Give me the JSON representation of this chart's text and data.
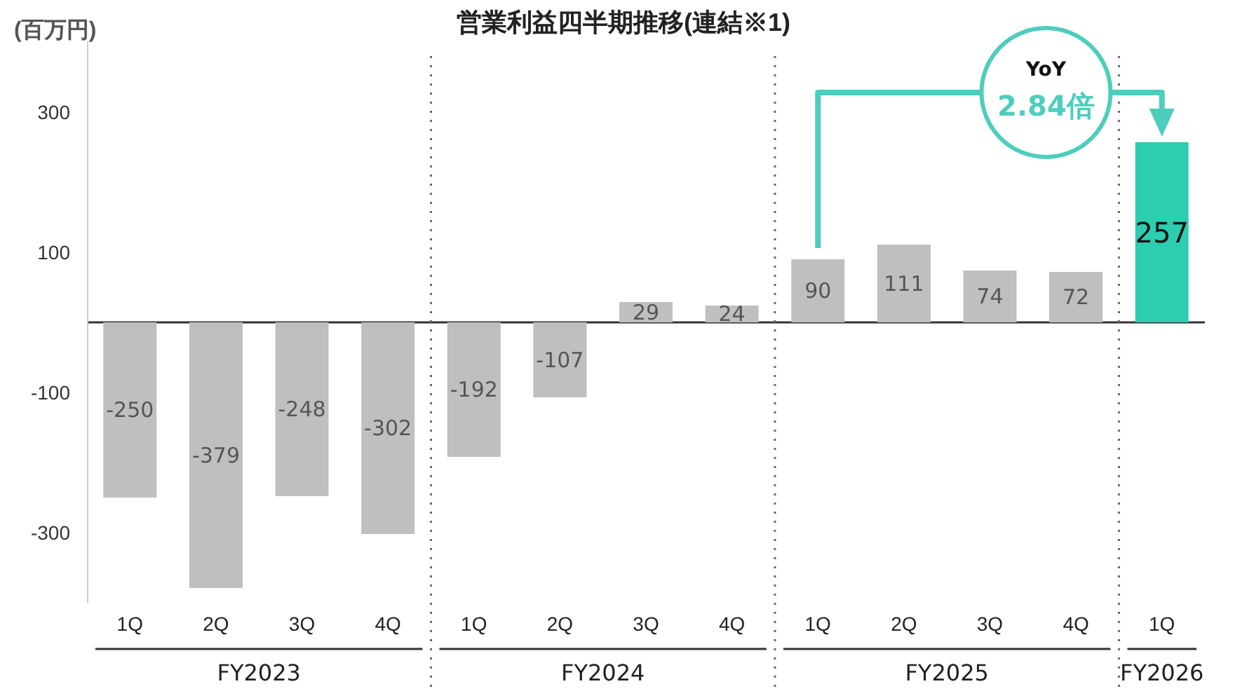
{
  "chart_data": {
    "type": "bar",
    "title": "営業利益四半期推移(連結※1)",
    "ylabel": "(百万円)",
    "categories": [
      "1Q",
      "2Q",
      "3Q",
      "4Q",
      "1Q",
      "2Q",
      "3Q",
      "4Q",
      "1Q",
      "2Q",
      "3Q",
      "4Q",
      "1Q"
    ],
    "values": [
      -250,
      -379,
      -248,
      -302,
      -192,
      -107,
      29,
      24,
      90,
      111,
      74,
      72,
      257
    ],
    "colors": [
      "#bfbfbf",
      "#bfbfbf",
      "#bfbfbf",
      "#bfbfbf",
      "#bfbfbf",
      "#bfbfbf",
      "#bfbfbf",
      "#bfbfbf",
      "#bfbfbf",
      "#bfbfbf",
      "#bfbfbf",
      "#bfbfbf",
      "#2dcdb0"
    ],
    "ylim": [
      -400,
      400
    ],
    "yticks": [
      300,
      100,
      -100,
      -300
    ],
    "data_labels": true,
    "grid": false,
    "annotations": [
      "FY2023",
      "FY2024",
      "FY2025",
      "FY2026",
      "YoY",
      "2.84倍"
    ]
  }
}
